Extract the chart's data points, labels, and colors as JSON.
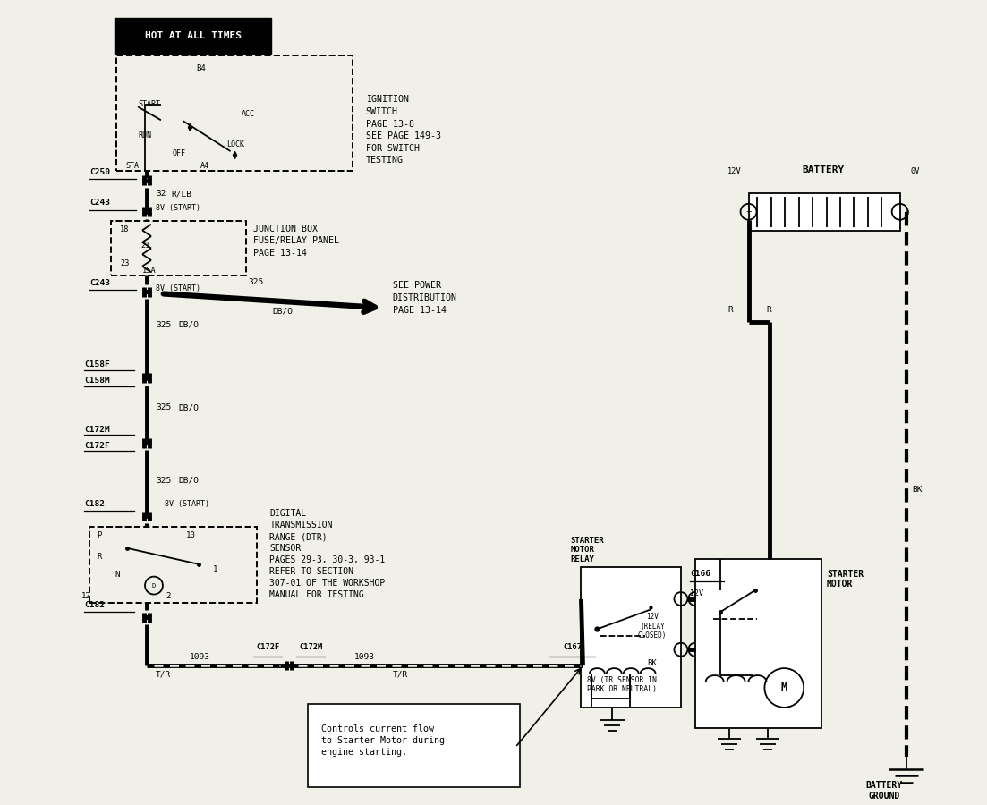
{
  "bg_color": "#f0f0e8",
  "hot_at_all_times": "HOT AT ALL TIMES",
  "ignition_switch_label": "IGNITION\nSWITCH\nPAGE 13-8\nSEE PAGE 149-3\nFOR SWITCH\nTESTING",
  "junction_box_label": "JUNCTION BOX\nFUSE/RELAY PANEL\nPAGE 13-14",
  "see_power_dist_label": "SEE POWER\nDISTRIBUTION\nPAGE 13-14",
  "dtr_label": "DIGITAL\nTRANSMISSION\nRANGE (DTR)\nSENSOR\nPAGES 29-3, 30-3, 93-1\nREFER TO SECTION\n307-01 OF THE WORKSHOP\nMANUAL FOR TESTING",
  "starter_relay_label": "STARTER\nMOTOR\nRELAY",
  "starter_motor_label": "STARTER\nMOTOR",
  "battery_label": "BATTERY",
  "battery_ground_label": "BATTERY\nGROUND",
  "controls_note": "Controls current flow\nto Starter Motor during\nengine starting."
}
